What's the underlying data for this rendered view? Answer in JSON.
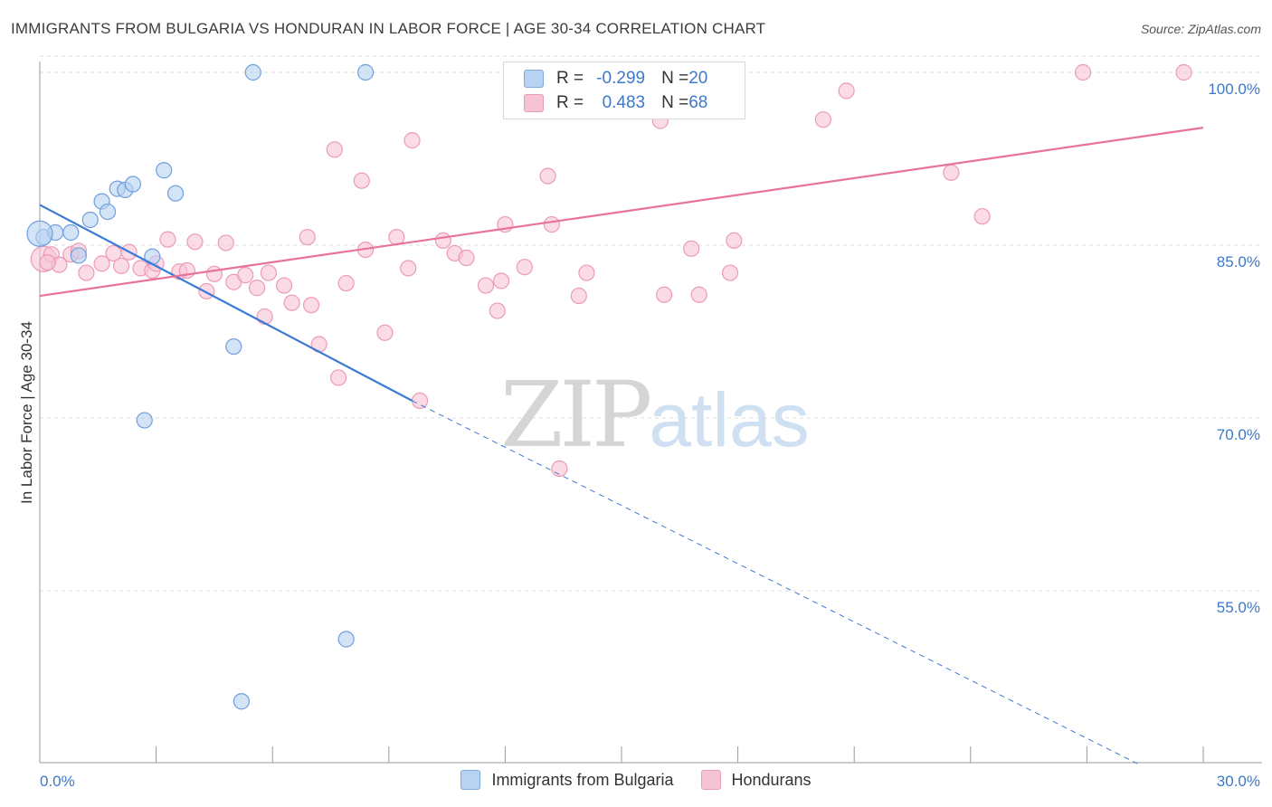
{
  "title": "IMMIGRANTS FROM BULGARIA VS HONDURAN IN LABOR FORCE | AGE 30-34 CORRELATION CHART",
  "source": "Source: ZipAtlas.com",
  "watermark": {
    "zip": "ZIP",
    "atlas": "atlas"
  },
  "legend": {
    "rows": [
      {
        "r_label": "R = ",
        "r_value": "-0.299",
        "n_label": "N = ",
        "n_value": "20"
      },
      {
        "r_label": "R = ",
        "r_value": "0.483",
        "n_label": "N = ",
        "n_value": "68"
      }
    ]
  },
  "bottom_legend": [
    "Immigrants from Bulgaria",
    "Hondurans"
  ],
  "colors": {
    "blue": "#3a7bd5",
    "blue_fill": "#b8d2f2",
    "pink": "#e8729a",
    "pink_fill": "#f6c3d5",
    "tick_text": "#3d78c9",
    "grid": "#dddddd"
  },
  "chart_data": {
    "type": "scatter",
    "title": "IMMIGRANTS FROM BULGARIA VS HONDURAN IN LABOR FORCE | AGE 30-34 CORRELATION CHART",
    "xlabel": "",
    "ylabel": "In Labor Force | Age 30-34",
    "xlim": [
      0,
      30
    ],
    "ylim": [
      40,
      102
    ],
    "x_tick_labels": [
      "0.0%",
      "30.0%"
    ],
    "y_ticks": [
      55,
      70,
      85,
      100
    ],
    "y_tick_labels": [
      "55.0%",
      "70.0%",
      "85.0%",
      "100.0%"
    ],
    "grid": true,
    "legend_position": "top-center",
    "series": [
      {
        "name": "Immigrants from Bulgaria",
        "color": "#3a7bd5",
        "trend": {
          "x": [
            0,
            9.6
          ],
          "y": [
            88.5,
            71.5
          ],
          "dashed_to": [
            28.3,
            40.0
          ]
        },
        "points": [
          [
            0.1,
            85.7
          ],
          [
            0.4,
            86.1
          ],
          [
            0.8,
            86.1
          ],
          [
            1.0,
            84.1
          ],
          [
            1.3,
            87.2
          ],
          [
            1.6,
            88.8
          ],
          [
            1.75,
            87.9
          ],
          [
            2.0,
            89.9
          ],
          [
            2.2,
            89.8
          ],
          [
            2.4,
            90.3
          ],
          [
            2.9,
            84.0
          ],
          [
            3.2,
            91.5
          ],
          [
            3.5,
            89.5
          ],
          [
            5.5,
            100.0
          ],
          [
            8.4,
            100.0
          ],
          [
            5.0,
            76.2
          ],
          [
            2.7,
            69.8
          ],
          [
            7.9,
            50.8
          ],
          [
            5.2,
            45.4
          ],
          [
            0.0,
            86.0
          ]
        ]
      },
      {
        "name": "Hondurans",
        "color": "#e8729a",
        "trend": {
          "x": [
            0,
            30
          ],
          "y": [
            80.6,
            95.2
          ]
        },
        "points": [
          [
            0.1,
            83.8
          ],
          [
            0.3,
            84.2
          ],
          [
            0.5,
            83.3
          ],
          [
            0.8,
            84.2
          ],
          [
            1.0,
            84.5
          ],
          [
            1.2,
            82.6
          ],
          [
            1.6,
            83.4
          ],
          [
            1.9,
            84.3
          ],
          [
            2.1,
            83.2
          ],
          [
            2.3,
            84.4
          ],
          [
            2.6,
            83.0
          ],
          [
            2.9,
            82.8
          ],
          [
            3.0,
            83.4
          ],
          [
            3.3,
            85.5
          ],
          [
            3.6,
            82.7
          ],
          [
            3.8,
            82.8
          ],
          [
            4.0,
            85.3
          ],
          [
            4.3,
            81.0
          ],
          [
            4.5,
            82.5
          ],
          [
            4.8,
            85.2
          ],
          [
            5.0,
            81.8
          ],
          [
            5.3,
            82.4
          ],
          [
            5.6,
            81.3
          ],
          [
            5.8,
            78.8
          ],
          [
            5.9,
            82.6
          ],
          [
            6.3,
            81.5
          ],
          [
            6.5,
            80.0
          ],
          [
            6.9,
            85.7
          ],
          [
            7.0,
            79.8
          ],
          [
            7.2,
            76.4
          ],
          [
            7.6,
            93.3
          ],
          [
            7.7,
            73.5
          ],
          [
            7.9,
            81.7
          ],
          [
            8.3,
            90.6
          ],
          [
            8.4,
            84.6
          ],
          [
            8.9,
            77.4
          ],
          [
            9.2,
            85.7
          ],
          [
            9.5,
            83.0
          ],
          [
            9.6,
            94.1
          ],
          [
            9.8,
            71.5
          ],
          [
            10.4,
            85.4
          ],
          [
            10.7,
            84.3
          ],
          [
            11.0,
            83.9
          ],
          [
            11.5,
            81.5
          ],
          [
            11.8,
            79.3
          ],
          [
            11.9,
            81.9
          ],
          [
            12.0,
            86.8
          ],
          [
            12.5,
            83.1
          ],
          [
            13.1,
            91.0
          ],
          [
            13.2,
            86.8
          ],
          [
            13.4,
            65.6
          ],
          [
            13.9,
            80.6
          ],
          [
            14.1,
            82.6
          ],
          [
            15.0,
            100.0
          ],
          [
            15.5,
            99.1
          ],
          [
            16.0,
            95.8
          ],
          [
            16.1,
            80.7
          ],
          [
            16.8,
            84.7
          ],
          [
            17.0,
            80.7
          ],
          [
            17.8,
            82.6
          ],
          [
            17.9,
            85.4
          ],
          [
            20.2,
            95.9
          ],
          [
            20.8,
            98.4
          ],
          [
            23.5,
            91.3
          ],
          [
            24.3,
            87.5
          ],
          [
            26.9,
            100.0
          ],
          [
            29.5,
            100.0
          ],
          [
            0.2,
            83.5
          ]
        ]
      }
    ]
  }
}
